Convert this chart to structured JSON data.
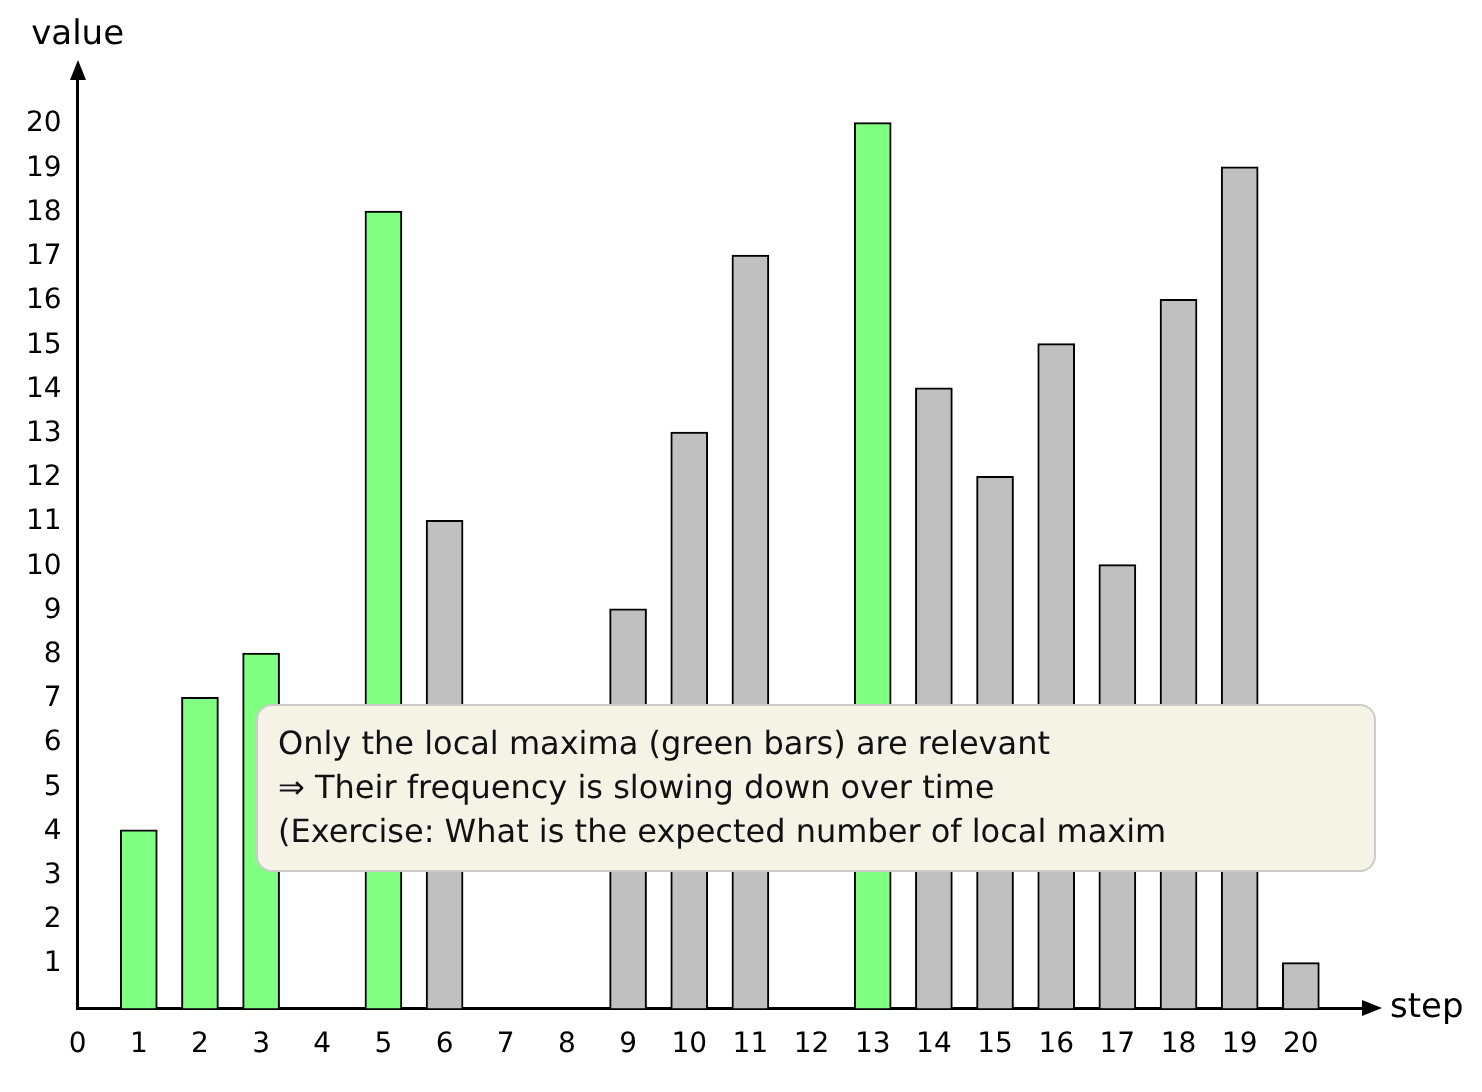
{
  "chart_data": {
    "type": "bar",
    "xlabel": "step",
    "ylabel": "value",
    "x": [
      1,
      2,
      3,
      4,
      5,
      6,
      7,
      8,
      9,
      10,
      11,
      12,
      13,
      14,
      15,
      16,
      17,
      18,
      19,
      20
    ],
    "values": [
      4,
      7,
      8,
      null,
      18,
      11,
      null,
      null,
      9,
      13,
      17,
      null,
      20,
      14,
      12,
      15,
      10,
      16,
      19,
      1
    ],
    "colors": [
      "#80ff80",
      "#80ff80",
      "#80ff80",
      "#c0c0c0",
      "#80ff80",
      "#c0c0c0",
      "#c0c0c0",
      "#c0c0c0",
      "#c0c0c0",
      "#c0c0c0",
      "#c0c0c0",
      "#c0c0c0",
      "#80ff80",
      "#c0c0c0",
      "#c0c0c0",
      "#c0c0c0",
      "#c0c0c0",
      "#c0c0c0",
      "#c0c0c0",
      "#c0c0c0"
    ],
    "xlim": [
      0,
      21
    ],
    "ylim": [
      0,
      21
    ],
    "xticks": [
      0,
      1,
      2,
      3,
      4,
      5,
      6,
      7,
      8,
      9,
      10,
      11,
      12,
      13,
      14,
      15,
      16,
      17,
      18,
      19,
      20
    ],
    "yticks": [
      1,
      2,
      3,
      4,
      5,
      6,
      7,
      8,
      9,
      10,
      11,
      12,
      13,
      14,
      15,
      16,
      17,
      18,
      19,
      20
    ],
    "grid": false,
    "legend": false,
    "annotations": [
      "Only the local maxima (green bars) are relevant",
      "⇒ Their frequency is slowing down over time",
      "(Exercise: What is the expected number of local maxim"
    ]
  }
}
